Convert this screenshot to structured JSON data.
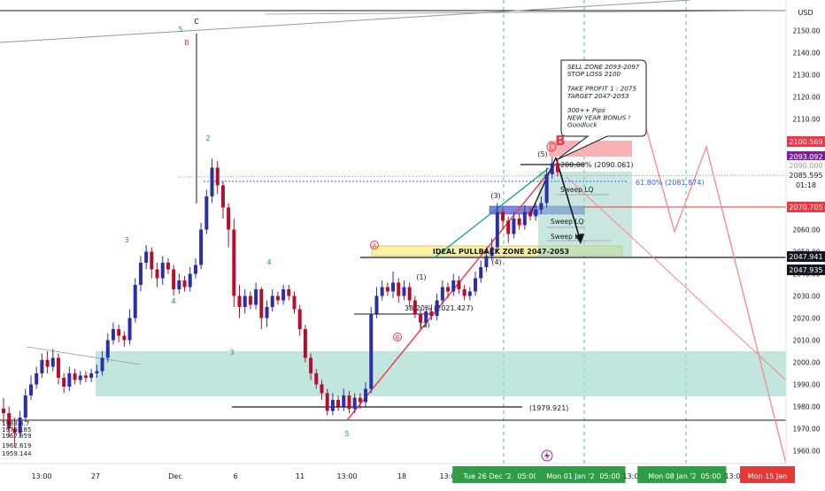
{
  "app": {
    "currency": "USD"
  },
  "chart_data": {
    "type": "candlestick",
    "title": "",
    "y_range": [
      1955,
      2168
    ],
    "y_ticks": [
      1960,
      1970,
      1980,
      1990,
      2000,
      2010,
      2020,
      2030,
      2040,
      2050,
      2060,
      2070,
      2080,
      2090,
      2100,
      2110,
      2120,
      2130,
      2140,
      2150
    ],
    "x_ticks": [
      "13:00",
      "27",
      "Dec",
      "6",
      "11",
      "13:00",
      "18",
      "13:00",
      "Tue 26 Dec '23",
      "05:00",
      "Mon 01 Jan '24",
      "05:00",
      "13:00",
      "Mon 08 Jan '24",
      "05:00",
      "13:00",
      "Mon 15 Jan"
    ],
    "price_tags": [
      {
        "value": "2100.569",
        "color": "#f23645",
        "text_color": "#ffffff"
      },
      {
        "value": "2093.092",
        "color": "#7b1fa2",
        "text_color": "#ffffff"
      },
      {
        "value": "2090.000",
        "color": "#ffffff",
        "text_color": "#9598a1"
      },
      {
        "value": "2085.595",
        "color": "#ffffff",
        "text_color": "#131722"
      },
      {
        "value": "01:18",
        "color": "#ffffff",
        "text_color": "#131722"
      },
      {
        "value": "2070.705",
        "color": "#f23645",
        "text_color": "#ffffff"
      },
      {
        "value": "2047.941",
        "color": "#131722",
        "text_color": "#ffffff"
      },
      {
        "value": "2047.935",
        "color": "#131722",
        "text_color": "#ffffff"
      }
    ],
    "candle_colors": {
      "up": "#2b2ea8",
      "down": "#b2102f"
    },
    "candles": [
      [
        1979,
        1977,
        1984,
        1972
      ],
      [
        1977,
        1970,
        1980,
        1966
      ],
      [
        1970,
        1968,
        1975,
        1962
      ],
      [
        1968,
        1975,
        1978,
        1966
      ],
      [
        1975,
        1985,
        1988,
        1973
      ],
      [
        1985,
        1990,
        1994,
        1983
      ],
      [
        1990,
        1995,
        1998,
        1988
      ],
      [
        1995,
        2001,
        2004,
        1993
      ],
      [
        2001,
        1998,
        2005,
        1995
      ],
      [
        1998,
        2002,
        2006,
        1996
      ],
      [
        2002,
        1993,
        2004,
        1990
      ],
      [
        1993,
        1989,
        1995,
        1986
      ],
      [
        1989,
        1995,
        1998,
        1987
      ],
      [
        1995,
        1992,
        1997,
        1990
      ],
      [
        1992,
        1994,
        1996,
        1990
      ],
      [
        1994,
        1993,
        1996,
        1991
      ],
      [
        1993,
        1995,
        1997,
        1991
      ],
      [
        1995,
        1996,
        1999,
        1993
      ],
      [
        1996,
        2002,
        2005,
        1994
      ],
      [
        2002,
        2010,
        2013,
        2000
      ],
      [
        2010,
        2015,
        2018,
        2008
      ],
      [
        2015,
        2012,
        2017,
        2009
      ],
      [
        2012,
        2010,
        2014,
        2007
      ],
      [
        2010,
        2020,
        2024,
        2008
      ],
      [
        2020,
        2035,
        2038,
        2018
      ],
      [
        2035,
        2045,
        2048,
        2032
      ],
      [
        2045,
        2050,
        2053,
        2042
      ],
      [
        2050,
        2042,
        2052,
        2038
      ],
      [
        2042,
        2038,
        2045,
        2034
      ],
      [
        2038,
        2045,
        2048,
        2035
      ],
      [
        2045,
        2042,
        2047,
        2040
      ],
      [
        2042,
        2033,
        2044,
        2030
      ],
      [
        2033,
        2037,
        2040,
        2031
      ],
      [
        2037,
        2034,
        2039,
        2032
      ],
      [
        2034,
        2040,
        2043,
        2032
      ],
      [
        2040,
        2044,
        2047,
        2038
      ],
      [
        2044,
        2060,
        2063,
        2042
      ],
      [
        2060,
        2075,
        2078,
        2058
      ],
      [
        2075,
        2088,
        2092,
        2072
      ],
      [
        2088,
        2080,
        2091,
        2076
      ],
      [
        2080,
        2070,
        2082,
        2065
      ],
      [
        2070,
        2060,
        2072,
        2052
      ],
      [
        2060,
        2030,
        2065,
        2025
      ],
      [
        2030,
        2025,
        2035,
        2020
      ],
      [
        2025,
        2030,
        2033,
        2022
      ],
      [
        2030,
        2026,
        2032,
        2024
      ],
      [
        2026,
        2033,
        2036,
        2024
      ],
      [
        2033,
        2020,
        2034,
        2015
      ],
      [
        2020,
        2025,
        2028,
        2016
      ],
      [
        2025,
        2030,
        2033,
        2023
      ],
      [
        2030,
        2028,
        2032,
        2026
      ],
      [
        2028,
        2033,
        2035,
        2026
      ],
      [
        2033,
        2030,
        2035,
        2028
      ],
      [
        2030,
        2024,
        2032,
        2022
      ],
      [
        2024,
        2015,
        2026,
        2012
      ],
      [
        2015,
        2002,
        2017,
        2000
      ],
      [
        2002,
        1995,
        2004,
        1992
      ],
      [
        1995,
        1990,
        1997,
        1988
      ],
      [
        1990,
        1986,
        1992,
        1983
      ],
      [
        1986,
        1978,
        1988,
        1976
      ],
      [
        1978,
        1983,
        1986,
        1976
      ],
      [
        1983,
        1980,
        1985,
        1978
      ],
      [
        1980,
        1985,
        1988,
        1978
      ],
      [
        1985,
        1979,
        1987,
        1977
      ],
      [
        1979,
        1984,
        1986,
        1977
      ],
      [
        1984,
        1982,
        1986,
        1979
      ],
      [
        1982,
        1988,
        1991,
        1980
      ],
      [
        1988,
        2022,
        2025,
        1986
      ],
      [
        2022,
        2030,
        2034,
        2020
      ],
      [
        2030,
        2034,
        2037,
        2028
      ],
      [
        2034,
        2032,
        2036,
        2030
      ],
      [
        2032,
        2036,
        2041,
        2029
      ],
      [
        2036,
        2030,
        2038,
        2027
      ],
      [
        2030,
        2034,
        2037,
        2028
      ],
      [
        2034,
        2028,
        2036,
        2025
      ],
      [
        2028,
        2022,
        2030,
        2020
      ],
      [
        2022,
        2018,
        2024,
        2015
      ],
      [
        2018,
        2023,
        2025,
        2016
      ],
      [
        2023,
        2021,
        2026,
        2019
      ],
      [
        2021,
        2028,
        2031,
        2019
      ],
      [
        2028,
        2034,
        2037,
        2026
      ],
      [
        2034,
        2032,
        2036,
        2029
      ],
      [
        2032,
        2037,
        2040,
        2030
      ],
      [
        2037,
        2033,
        2039,
        2031
      ],
      [
        2033,
        2030,
        2035,
        2028
      ],
      [
        2030,
        2032,
        2034,
        2028
      ],
      [
        2032,
        2038,
        2041,
        2030
      ],
      [
        2038,
        2043,
        2046,
        2036
      ],
      [
        2043,
        2048,
        2052,
        2041
      ],
      [
        2048,
        2052,
        2056,
        2046
      ],
      [
        2052,
        2068,
        2072,
        2050
      ],
      [
        2068,
        2064,
        2070,
        2060
      ],
      [
        2064,
        2058,
        2066,
        2054
      ],
      [
        2058,
        2065,
        2068,
        2056
      ],
      [
        2065,
        2062,
        2067,
        2060
      ],
      [
        2062,
        2068,
        2071,
        2060
      ],
      [
        2068,
        2066,
        2070,
        2064
      ],
      [
        2066,
        2069,
        2072,
        2064
      ],
      [
        2069,
        2072,
        2075,
        2067
      ],
      [
        2072,
        2085,
        2088,
        2070
      ],
      [
        2085,
        2090,
        2093,
        2083
      ],
      [
        2090,
        2086,
        2092,
        2084
      ]
    ],
    "zones": [
      {
        "label": "",
        "from": 1985,
        "to": 2006,
        "color": "#a5dccf"
      },
      {
        "label": "IDEAL PULLBACK ZONE 2047-2053",
        "from": 2047,
        "to": 2053,
        "color": "#fbf3a4"
      },
      {
        "label": "",
        "from": 2068,
        "to": 2071,
        "color": "#8085e0"
      },
      {
        "label": "",
        "from": 2093,
        "to": 2100,
        "color": "#f7a5a8"
      }
    ],
    "levels": [
      {
        "label": "",
        "value": 2047.941
      },
      {
        "label": "",
        "value": 2070.705
      },
      {
        "label": "61.80% (2081.874)",
        "value": 2081.874
      },
      {
        "label": "200.00% (2090.061)",
        "value": 2090.061
      },
      {
        "label": "(1979.921)",
        "value": 1979.921
      },
      {
        "label": "38.20% (2021.427)",
        "value": 2021.427
      }
    ],
    "annotations": {
      "callout": [
        "SELL ZONE 2093-2097",
        "STOP LOSS 2100",
        "",
        "TAKE PROFIT 1 : 2075",
        "TARGET 2047-2053",
        "",
        "300++ Pips",
        "NEW YEAR BONUS !",
        "Goodluck"
      ],
      "sweeps": [
        "Sweep LQ",
        "Sweep LQ",
        "Sweep LQ"
      ],
      "waves": [
        {
          "text": "C",
          "color": "#131722"
        },
        {
          "text": "5",
          "color": "#089981"
        },
        {
          "text": "B",
          "color": "#f23645"
        },
        {
          "text": "2",
          "color": "#089981"
        },
        {
          "text": "3",
          "color": "#089981"
        },
        {
          "text": "4",
          "color": "#089981"
        },
        {
          "text": "4",
          "color": "#089981"
        },
        {
          "text": "3",
          "color": "#089981"
        },
        {
          "text": "5",
          "color": "#089981"
        },
        {
          "text": "A",
          "color": "#f23645"
        },
        {
          "text": "B",
          "color": "#f23645"
        },
        {
          "text": "(1)",
          "color": "#131722"
        },
        {
          "text": "(2)",
          "color": "#131722"
        },
        {
          "text": "(3)",
          "color": "#131722"
        },
        {
          "text": "(4)",
          "color": "#131722"
        },
        {
          "text": "(5)",
          "color": "#131722"
        },
        {
          "text": "C",
          "color": "#f23645"
        },
        {
          "text": "B",
          "color": "#f23645"
        }
      ],
      "left_labels": [
        "1983.8.7",
        "1976.185",
        "1967.859",
        "1962.619",
        "1959.144"
      ]
    }
  }
}
